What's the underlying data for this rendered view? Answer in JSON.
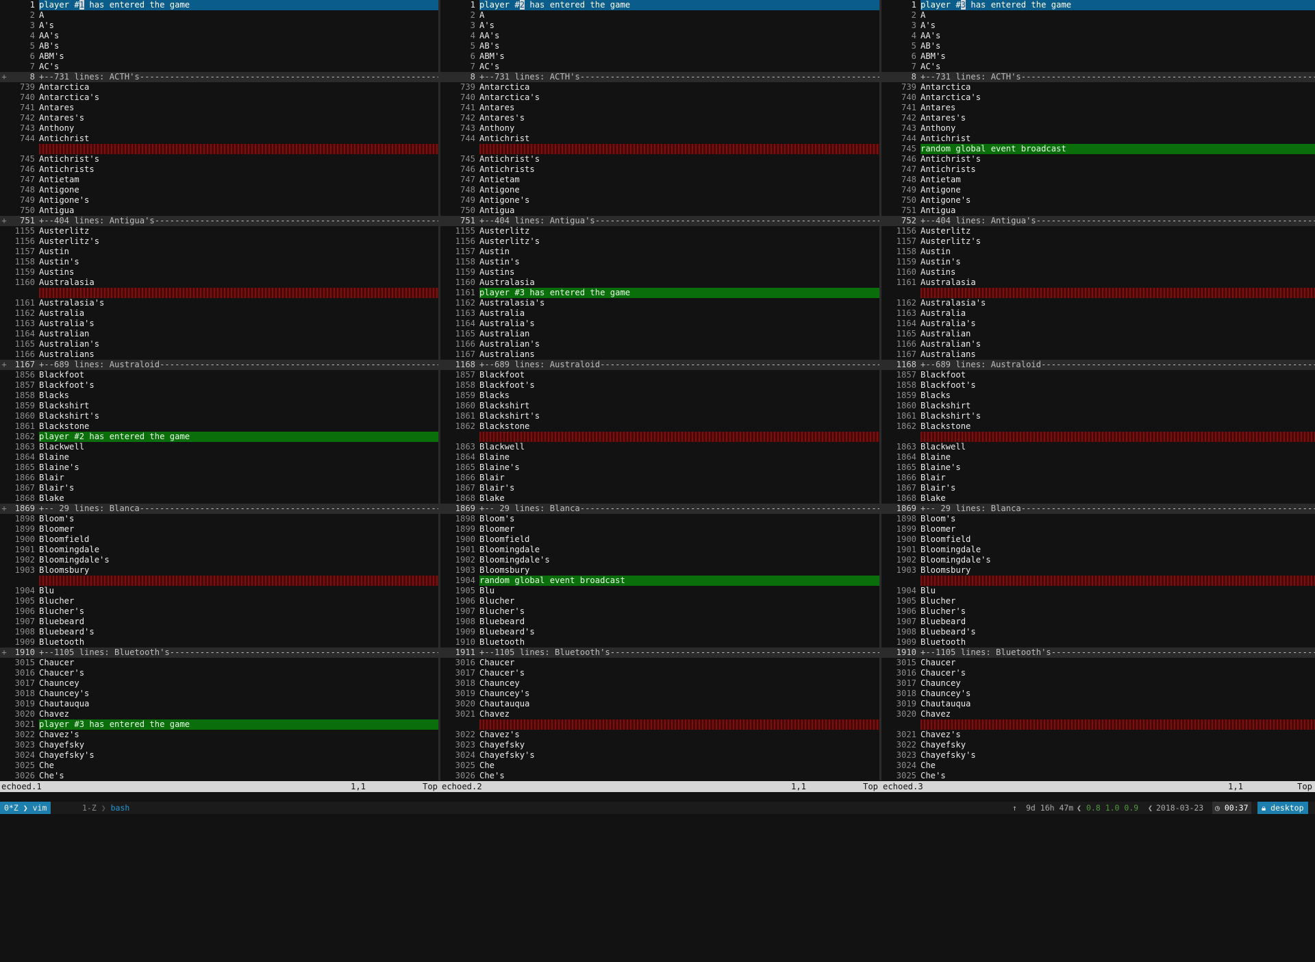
{
  "panes": [
    {
      "name": "echoed.1",
      "status": {
        "filename": "echoed.1",
        "position": "1,1",
        "scroll": "Top"
      },
      "lines": [
        {
          "n": "1",
          "t": "player #1 has entered the game",
          "k": "hl"
        },
        {
          "n": "2",
          "t": "A"
        },
        {
          "n": "3",
          "t": "A's"
        },
        {
          "n": "4",
          "t": "AA's"
        },
        {
          "n": "5",
          "t": "AB's"
        },
        {
          "n": "6",
          "t": "ABM's"
        },
        {
          "n": "7",
          "t": "AC's"
        },
        {
          "n": "8",
          "t": "+--731 lines: ACTH's-----------------------------------------------------------------------------------------",
          "k": "fold",
          "s": "+"
        },
        {
          "n": "739",
          "t": "Antarctica"
        },
        {
          "n": "740",
          "t": "Antarctica's"
        },
        {
          "n": "741",
          "t": "Antares"
        },
        {
          "n": "742",
          "t": "Antares's"
        },
        {
          "n": "743",
          "t": "Anthony"
        },
        {
          "n": "744",
          "t": "Antichrist"
        },
        {
          "n": "",
          "t": "",
          "k": "del"
        },
        {
          "n": "745",
          "t": "Antichrist's"
        },
        {
          "n": "746",
          "t": "Antichrists"
        },
        {
          "n": "747",
          "t": "Antietam"
        },
        {
          "n": "748",
          "t": "Antigone"
        },
        {
          "n": "749",
          "t": "Antigone's"
        },
        {
          "n": "750",
          "t": "Antigua"
        },
        {
          "n": "751",
          "t": "+--404 lines: Antigua's----------------------------------------------------------------------------------------",
          "k": "fold",
          "s": "+"
        },
        {
          "n": "1155",
          "t": "Austerlitz"
        },
        {
          "n": "1156",
          "t": "Austerlitz's"
        },
        {
          "n": "1157",
          "t": "Austin"
        },
        {
          "n": "1158",
          "t": "Austin's"
        },
        {
          "n": "1159",
          "t": "Austins"
        },
        {
          "n": "1160",
          "t": "Australasia"
        },
        {
          "n": "",
          "t": "",
          "k": "del"
        },
        {
          "n": "1161",
          "t": "Australasia's"
        },
        {
          "n": "1162",
          "t": "Australia"
        },
        {
          "n": "1163",
          "t": "Australia's"
        },
        {
          "n": "1164",
          "t": "Australian"
        },
        {
          "n": "1165",
          "t": "Australian's"
        },
        {
          "n": "1166",
          "t": "Australians"
        },
        {
          "n": "1167",
          "t": "+--689 lines: Australoid---------------------------------------------------------------------------------------",
          "k": "fold",
          "s": "+"
        },
        {
          "n": "1856",
          "t": "Blackfoot"
        },
        {
          "n": "1857",
          "t": "Blackfoot's"
        },
        {
          "n": "1858",
          "t": "Blacks"
        },
        {
          "n": "1859",
          "t": "Blackshirt"
        },
        {
          "n": "1860",
          "t": "Blackshirt's"
        },
        {
          "n": "1861",
          "t": "Blackstone"
        },
        {
          "n": "1862",
          "t": "player #2 has entered the game",
          "k": "ins"
        },
        {
          "n": "1863",
          "t": "Blackwell"
        },
        {
          "n": "1864",
          "t": "Blaine"
        },
        {
          "n": "1865",
          "t": "Blaine's"
        },
        {
          "n": "1866",
          "t": "Blair"
        },
        {
          "n": "1867",
          "t": "Blair's"
        },
        {
          "n": "1868",
          "t": "Blake"
        },
        {
          "n": "1869",
          "t": "+-- 29 lines: Blanca-------------------------------------------------------------------------------------------",
          "k": "fold",
          "s": "+"
        },
        {
          "n": "1898",
          "t": "Bloom's"
        },
        {
          "n": "1899",
          "t": "Bloomer"
        },
        {
          "n": "1900",
          "t": "Bloomfield"
        },
        {
          "n": "1901",
          "t": "Bloomingdale"
        },
        {
          "n": "1902",
          "t": "Bloomingdale's"
        },
        {
          "n": "1903",
          "t": "Bloomsbury"
        },
        {
          "n": "",
          "t": "",
          "k": "del"
        },
        {
          "n": "1904",
          "t": "Blu"
        },
        {
          "n": "1905",
          "t": "Blucher"
        },
        {
          "n": "1906",
          "t": "Blucher's"
        },
        {
          "n": "1907",
          "t": "Bluebeard"
        },
        {
          "n": "1908",
          "t": "Bluebeard's"
        },
        {
          "n": "1909",
          "t": "Bluetooth"
        },
        {
          "n": "1910",
          "t": "+--1105 lines: Bluetooth's--------------------------------------------------------------------------------------",
          "k": "fold",
          "s": "+"
        },
        {
          "n": "3015",
          "t": "Chaucer"
        },
        {
          "n": "3016",
          "t": "Chaucer's"
        },
        {
          "n": "3017",
          "t": "Chauncey"
        },
        {
          "n": "3018",
          "t": "Chauncey's"
        },
        {
          "n": "3019",
          "t": "Chautauqua"
        },
        {
          "n": "3020",
          "t": "Chavez"
        },
        {
          "n": "3021",
          "t": "player #3 has entered the game",
          "k": "ins"
        },
        {
          "n": "3022",
          "t": "Chavez's"
        },
        {
          "n": "3023",
          "t": "Chayefsky"
        },
        {
          "n": "3024",
          "t": "Chayefsky's"
        },
        {
          "n": "3025",
          "t": "Che"
        },
        {
          "n": "3026",
          "t": "Che's"
        }
      ]
    },
    {
      "name": "echoed.2",
      "status": {
        "filename": "echoed.2",
        "position": "1,1",
        "scroll": "Top"
      },
      "lines": [
        {
          "n": "1",
          "t": "player #2 has entered the game",
          "k": "hl"
        },
        {
          "n": "2",
          "t": "A"
        },
        {
          "n": "3",
          "t": "A's"
        },
        {
          "n": "4",
          "t": "AA's"
        },
        {
          "n": "5",
          "t": "AB's"
        },
        {
          "n": "6",
          "t": "ABM's"
        },
        {
          "n": "7",
          "t": "AC's"
        },
        {
          "n": "8",
          "t": "+--731 lines: ACTH's-----------------------------------------------------------------------------------------",
          "k": "fold"
        },
        {
          "n": "739",
          "t": "Antarctica"
        },
        {
          "n": "740",
          "t": "Antarctica's"
        },
        {
          "n": "741",
          "t": "Antares"
        },
        {
          "n": "742",
          "t": "Antares's"
        },
        {
          "n": "743",
          "t": "Anthony"
        },
        {
          "n": "744",
          "t": "Antichrist"
        },
        {
          "n": "",
          "t": "",
          "k": "del"
        },
        {
          "n": "745",
          "t": "Antichrist's"
        },
        {
          "n": "746",
          "t": "Antichrists"
        },
        {
          "n": "747",
          "t": "Antietam"
        },
        {
          "n": "748",
          "t": "Antigone"
        },
        {
          "n": "749",
          "t": "Antigone's"
        },
        {
          "n": "750",
          "t": "Antigua"
        },
        {
          "n": "751",
          "t": "+--404 lines: Antigua's----------------------------------------------------------------------------------------",
          "k": "fold"
        },
        {
          "n": "1155",
          "t": "Austerlitz"
        },
        {
          "n": "1156",
          "t": "Austerlitz's"
        },
        {
          "n": "1157",
          "t": "Austin"
        },
        {
          "n": "1158",
          "t": "Austin's"
        },
        {
          "n": "1159",
          "t": "Austins"
        },
        {
          "n": "1160",
          "t": "Australasia"
        },
        {
          "n": "1161",
          "t": "player #3 has entered the game",
          "k": "ins"
        },
        {
          "n": "1162",
          "t": "Australasia's"
        },
        {
          "n": "1163",
          "t": "Australia"
        },
        {
          "n": "1164",
          "t": "Australia's"
        },
        {
          "n": "1165",
          "t": "Australian"
        },
        {
          "n": "1166",
          "t": "Australian's"
        },
        {
          "n": "1167",
          "t": "Australians"
        },
        {
          "n": "1168",
          "t": "+--689 lines: Australoid---------------------------------------------------------------------------------------",
          "k": "fold"
        },
        {
          "n": "1857",
          "t": "Blackfoot"
        },
        {
          "n": "1858",
          "t": "Blackfoot's"
        },
        {
          "n": "1859",
          "t": "Blacks"
        },
        {
          "n": "1860",
          "t": "Blackshirt"
        },
        {
          "n": "1861",
          "t": "Blackshirt's"
        },
        {
          "n": "1862",
          "t": "Blackstone"
        },
        {
          "n": "",
          "t": "",
          "k": "del"
        },
        {
          "n": "1863",
          "t": "Blackwell"
        },
        {
          "n": "1864",
          "t": "Blaine"
        },
        {
          "n": "1865",
          "t": "Blaine's"
        },
        {
          "n": "1866",
          "t": "Blair"
        },
        {
          "n": "1867",
          "t": "Blair's"
        },
        {
          "n": "1868",
          "t": "Blake"
        },
        {
          "n": "1869",
          "t": "+-- 29 lines: Blanca-------------------------------------------------------------------------------------------",
          "k": "fold"
        },
        {
          "n": "1898",
          "t": "Bloom's"
        },
        {
          "n": "1899",
          "t": "Bloomer"
        },
        {
          "n": "1900",
          "t": "Bloomfield"
        },
        {
          "n": "1901",
          "t": "Bloomingdale"
        },
        {
          "n": "1902",
          "t": "Bloomingdale's"
        },
        {
          "n": "1903",
          "t": "Bloomsbury"
        },
        {
          "n": "1904",
          "t": "random global event broadcast",
          "k": "ins"
        },
        {
          "n": "1905",
          "t": "Blu"
        },
        {
          "n": "1906",
          "t": "Blucher"
        },
        {
          "n": "1907",
          "t": "Blucher's"
        },
        {
          "n": "1908",
          "t": "Bluebeard"
        },
        {
          "n": "1909",
          "t": "Bluebeard's"
        },
        {
          "n": "1910",
          "t": "Bluetooth"
        },
        {
          "n": "1911",
          "t": "+--1105 lines: Bluetooth's--------------------------------------------------------------------------------------",
          "k": "fold"
        },
        {
          "n": "3016",
          "t": "Chaucer"
        },
        {
          "n": "3017",
          "t": "Chaucer's"
        },
        {
          "n": "3018",
          "t": "Chauncey"
        },
        {
          "n": "3019",
          "t": "Chauncey's"
        },
        {
          "n": "3020",
          "t": "Chautauqua"
        },
        {
          "n": "3021",
          "t": "Chavez"
        },
        {
          "n": "",
          "t": "",
          "k": "del"
        },
        {
          "n": "3022",
          "t": "Chavez's"
        },
        {
          "n": "3023",
          "t": "Chayefsky"
        },
        {
          "n": "3024",
          "t": "Chayefsky's"
        },
        {
          "n": "3025",
          "t": "Che"
        },
        {
          "n": "3026",
          "t": "Che's"
        }
      ]
    },
    {
      "name": "echoed.3",
      "status": {
        "filename": "echoed.3",
        "position": "1,1",
        "scroll": "Top"
      },
      "lines": [
        {
          "n": "1",
          "t": "player #3 has entered the game",
          "k": "hl"
        },
        {
          "n": "2",
          "t": "A"
        },
        {
          "n": "3",
          "t": "A's"
        },
        {
          "n": "4",
          "t": "AA's"
        },
        {
          "n": "5",
          "t": "AB's"
        },
        {
          "n": "6",
          "t": "ABM's"
        },
        {
          "n": "7",
          "t": "AC's"
        },
        {
          "n": "8",
          "t": "+--731 lines: ACTH's-----------------------------------------------------------------------------------------",
          "k": "fold"
        },
        {
          "n": "739",
          "t": "Antarctica"
        },
        {
          "n": "740",
          "t": "Antarctica's"
        },
        {
          "n": "741",
          "t": "Antares"
        },
        {
          "n": "742",
          "t": "Antares's"
        },
        {
          "n": "743",
          "t": "Anthony"
        },
        {
          "n": "744",
          "t": "Antichrist"
        },
        {
          "n": "745",
          "t": "random global event broadcast",
          "k": "ins"
        },
        {
          "n": "746",
          "t": "Antichrist's"
        },
        {
          "n": "747",
          "t": "Antichrists"
        },
        {
          "n": "748",
          "t": "Antietam"
        },
        {
          "n": "749",
          "t": "Antigone"
        },
        {
          "n": "750",
          "t": "Antigone's"
        },
        {
          "n": "751",
          "t": "Antigua"
        },
        {
          "n": "752",
          "t": "+--404 lines: Antigua's----------------------------------------------------------------------------------------",
          "k": "fold"
        },
        {
          "n": "1156",
          "t": "Austerlitz"
        },
        {
          "n": "1157",
          "t": "Austerlitz's"
        },
        {
          "n": "1158",
          "t": "Austin"
        },
        {
          "n": "1159",
          "t": "Austin's"
        },
        {
          "n": "1160",
          "t": "Austins"
        },
        {
          "n": "1161",
          "t": "Australasia"
        },
        {
          "n": "",
          "t": "",
          "k": "del"
        },
        {
          "n": "1162",
          "t": "Australasia's"
        },
        {
          "n": "1163",
          "t": "Australia"
        },
        {
          "n": "1164",
          "t": "Australia's"
        },
        {
          "n": "1165",
          "t": "Australian"
        },
        {
          "n": "1166",
          "t": "Australian's"
        },
        {
          "n": "1167",
          "t": "Australians"
        },
        {
          "n": "1168",
          "t": "+--689 lines: Australoid---------------------------------------------------------------------------------------",
          "k": "fold"
        },
        {
          "n": "1857",
          "t": "Blackfoot"
        },
        {
          "n": "1858",
          "t": "Blackfoot's"
        },
        {
          "n": "1859",
          "t": "Blacks"
        },
        {
          "n": "1860",
          "t": "Blackshirt"
        },
        {
          "n": "1861",
          "t": "Blackshirt's"
        },
        {
          "n": "1862",
          "t": "Blackstone"
        },
        {
          "n": "",
          "t": "",
          "k": "del"
        },
        {
          "n": "1863",
          "t": "Blackwell"
        },
        {
          "n": "1864",
          "t": "Blaine"
        },
        {
          "n": "1865",
          "t": "Blaine's"
        },
        {
          "n": "1866",
          "t": "Blair"
        },
        {
          "n": "1867",
          "t": "Blair's"
        },
        {
          "n": "1868",
          "t": "Blake"
        },
        {
          "n": "1869",
          "t": "+-- 29 lines: Blanca-------------------------------------------------------------------------------------------",
          "k": "fold"
        },
        {
          "n": "1898",
          "t": "Bloom's"
        },
        {
          "n": "1899",
          "t": "Bloomer"
        },
        {
          "n": "1900",
          "t": "Bloomfield"
        },
        {
          "n": "1901",
          "t": "Bloomingdale"
        },
        {
          "n": "1902",
          "t": "Bloomingdale's"
        },
        {
          "n": "1903",
          "t": "Bloomsbury"
        },
        {
          "n": "",
          "t": "",
          "k": "del"
        },
        {
          "n": "1904",
          "t": "Blu"
        },
        {
          "n": "1905",
          "t": "Blucher"
        },
        {
          "n": "1906",
          "t": "Blucher's"
        },
        {
          "n": "1907",
          "t": "Bluebeard"
        },
        {
          "n": "1908",
          "t": "Bluebeard's"
        },
        {
          "n": "1909",
          "t": "Bluetooth"
        },
        {
          "n": "1910",
          "t": "+--1105 lines: Bluetooth's--------------------------------------------------------------------------------------",
          "k": "fold"
        },
        {
          "n": "3015",
          "t": "Chaucer"
        },
        {
          "n": "3016",
          "t": "Chaucer's"
        },
        {
          "n": "3017",
          "t": "Chauncey"
        },
        {
          "n": "3018",
          "t": "Chauncey's"
        },
        {
          "n": "3019",
          "t": "Chautauqua"
        },
        {
          "n": "3020",
          "t": "Chavez"
        },
        {
          "n": "",
          "t": "",
          "k": "del"
        },
        {
          "n": "3021",
          "t": "Chavez's"
        },
        {
          "n": "3022",
          "t": "Chayefsky"
        },
        {
          "n": "3023",
          "t": "Chayefsky's"
        },
        {
          "n": "3024",
          "t": "Che"
        },
        {
          "n": "3025",
          "t": "Che's"
        }
      ]
    }
  ],
  "tmux": {
    "window_active": "0*Z",
    "window_active_cmd": "vim",
    "window_other": "1-Z",
    "window_other_cmd": "bash",
    "uptime": "9d 16h 47m",
    "load": "0.8 1.0 0.9",
    "date": "2018-03-23",
    "time": "00:37",
    "host": "desktop"
  },
  "colors": {
    "inserted": "#0a6e0a",
    "deleted": "#5a0b0b",
    "first_line": "#0a5d8a",
    "fold": "#2b2b2b",
    "tmux_accent": "#1d7fae"
  }
}
